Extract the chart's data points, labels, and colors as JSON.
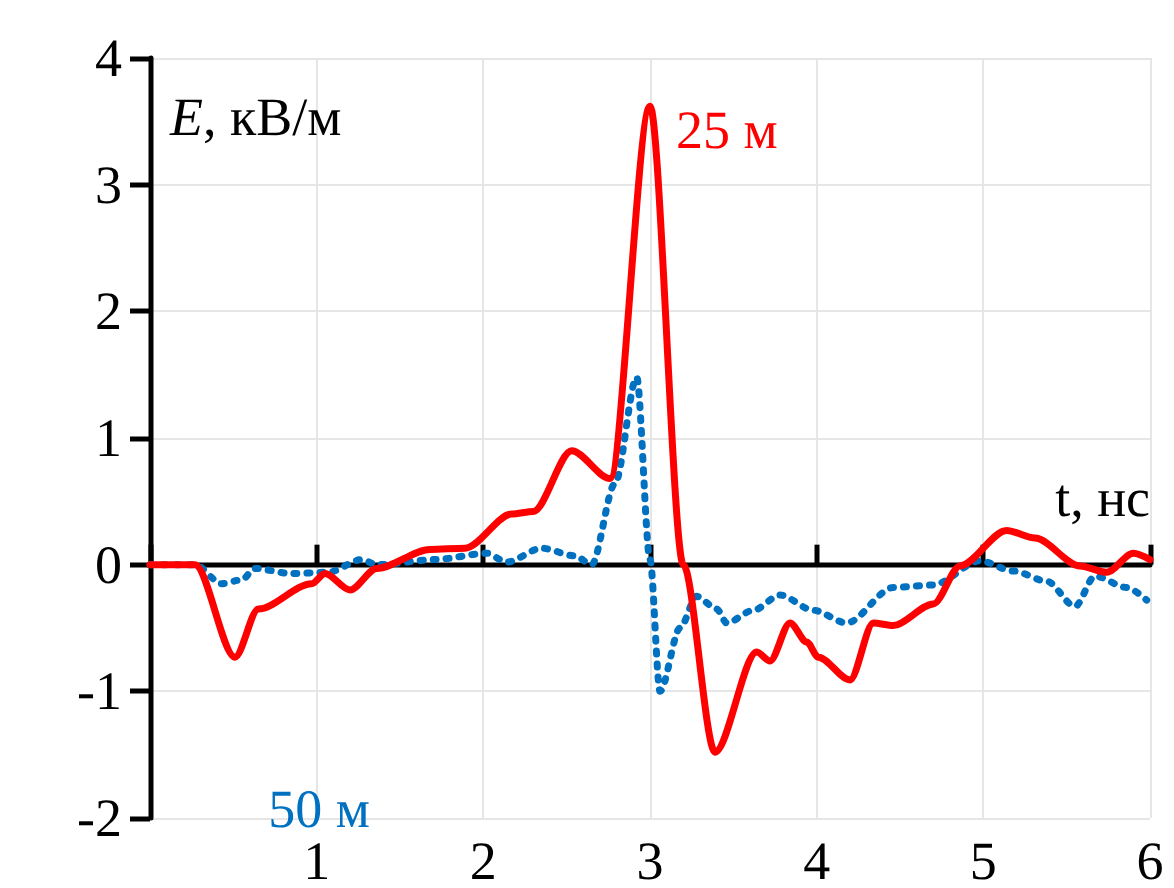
{
  "chart_data": {
    "type": "line",
    "xlabel": "t, нс",
    "ylabel": "E, кВ/м",
    "xlim": [
      0,
      6
    ],
    "ylim": [
      -2,
      4
    ],
    "xticks": [
      {
        "value": 0,
        "label": null
      },
      1,
      2,
      3,
      4,
      5,
      6
    ],
    "yticks": [
      -2,
      -1,
      0,
      1,
      2,
      3,
      4
    ],
    "grid": true,
    "legend": false,
    "series": [
      {
        "name": "25 м",
        "color": "#ff0000",
        "line_style": "solid",
        "x": [
          0,
          0.27,
          0.51,
          0.65,
          0.97,
          1.05,
          1.2,
          1.36,
          1.68,
          1.89,
          2.17,
          2.3,
          2.53,
          2.76,
          3.0,
          3.2,
          3.39,
          3.64,
          3.72,
          3.84,
          3.94,
          4.01,
          4.2,
          4.34,
          4.46,
          4.7,
          4.86,
          5.14,
          5.31,
          5.58,
          5.74,
          5.9,
          6.0
        ],
        "values": [
          0,
          0,
          -0.73,
          -0.35,
          -0.15,
          -0.07,
          -0.2,
          -0.03,
          0.12,
          0.13,
          0.4,
          0.42,
          0.9,
          0.68,
          3.62,
          0,
          -1.48,
          -0.69,
          -0.76,
          -0.46,
          -0.61,
          -0.73,
          -0.91,
          -0.46,
          -0.48,
          -0.31,
          -0.01,
          0.27,
          0.21,
          -0.01,
          -0.06,
          0.09,
          0.04
        ]
      },
      {
        "name": "50 м",
        "color": "#0070c0",
        "line_style": "dotted",
        "x": [
          0,
          0.27,
          0.43,
          0.55,
          0.63,
          0.85,
          1.07,
          1.27,
          1.36,
          1.71,
          2.02,
          2.14,
          2.35,
          2.55,
          2.65,
          2.79,
          2.92,
          3.0,
          3.06,
          3.18,
          3.28,
          3.4,
          3.46,
          3.62,
          3.78,
          3.98,
          4.18,
          4.46,
          4.7,
          4.98,
          5.18,
          5.38,
          5.55,
          5.67,
          5.86,
          5.98
        ],
        "values": [
          0,
          0,
          -0.15,
          -0.12,
          -0.03,
          -0.07,
          -0.06,
          0.04,
          0,
          0.04,
          0.09,
          0.02,
          0.13,
          0.07,
          0,
          0.64,
          1.48,
          0.04,
          -1.0,
          -0.5,
          -0.25,
          -0.35,
          -0.46,
          -0.36,
          -0.24,
          -0.36,
          -0.46,
          -0.18,
          -0.16,
          0.03,
          -0.05,
          -0.13,
          -0.33,
          -0.09,
          -0.18,
          -0.28
        ]
      }
    ]
  }
}
